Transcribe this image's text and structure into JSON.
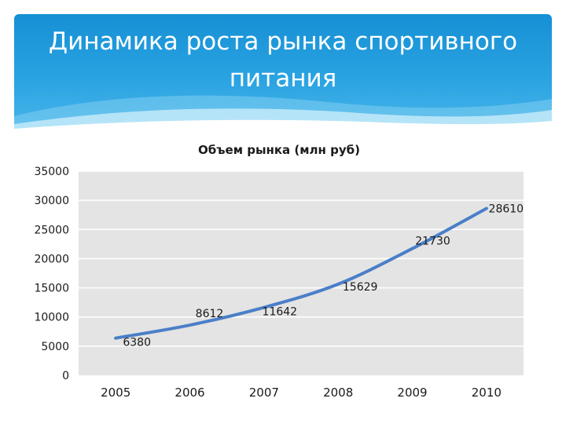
{
  "slide": {
    "title": "Динамика роста рынка спортивного питания"
  },
  "colors": {
    "header": "#1690d4",
    "line": "#4a7fc8",
    "plot_background": "#e4e4e4",
    "gridline": "#ffffff"
  },
  "chart_data": {
    "type": "line",
    "title": "Объем рынка (млн руб)",
    "xlabel": "",
    "ylabel": "",
    "categories": [
      "2005",
      "2006",
      "2007",
      "2008",
      "2009",
      "2010"
    ],
    "series": [
      {
        "x": [
          2005,
          2006,
          2007,
          2008,
          2009,
          2010
        ],
        "values": [
          6380,
          8612,
          11642,
          15629,
          21730,
          28610
        ],
        "labels": [
          "6380",
          "8612",
          "11642",
          "15629",
          "21730",
          "28610"
        ]
      }
    ],
    "y_ticks": [
      "0",
      "5000",
      "10000",
      "15000",
      "20000",
      "25000",
      "30000",
      "35000"
    ],
    "ylim": [
      0,
      35000
    ],
    "grid": true,
    "legend": "none"
  }
}
